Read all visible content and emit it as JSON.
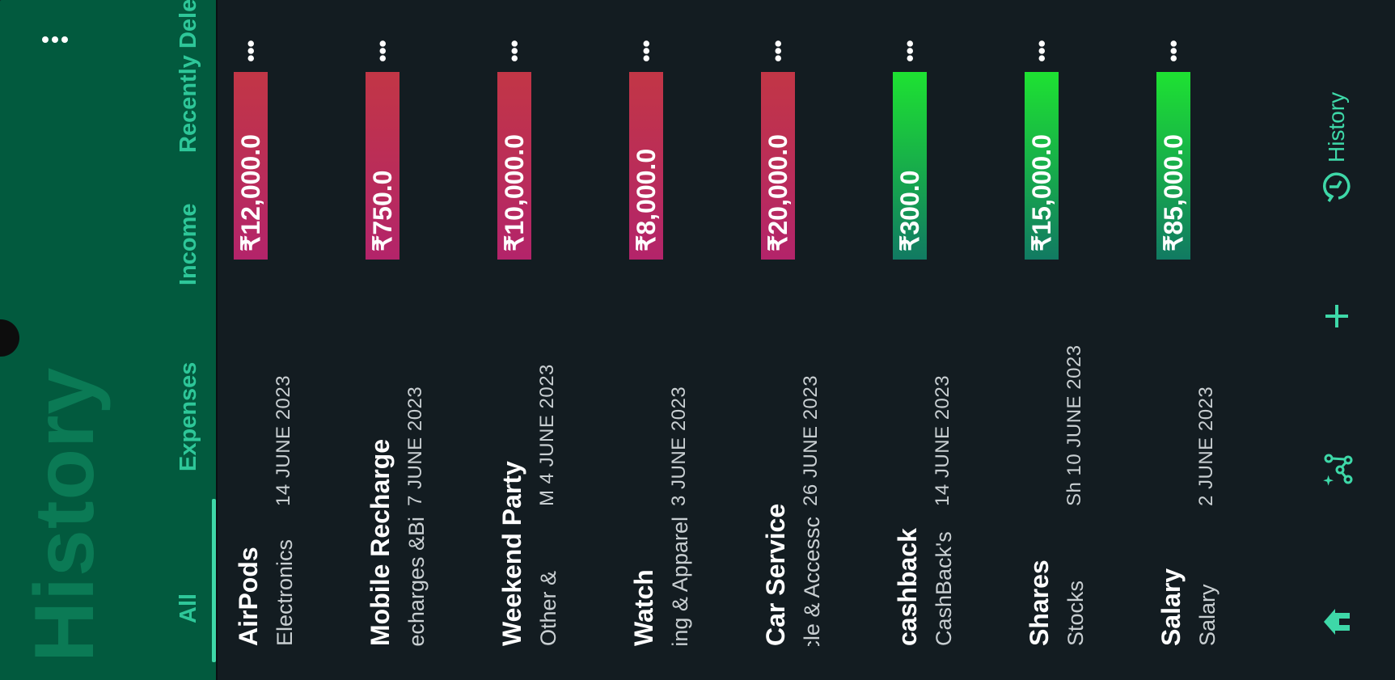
{
  "header": {
    "title": "History",
    "tabs": [
      "All",
      "Expenses",
      "Income",
      "Recently Dele"
    ],
    "menu_icon": "more-vert-icon"
  },
  "transactions": [
    {
      "title": "AirPods",
      "category": "Electronics",
      "date": "14  JUNE 2023",
      "amount": "₹12,000.0",
      "type": "expense"
    },
    {
      "title": "Mobile Recharge",
      "category": "Recharges &Bi",
      "date": "7  JUNE 2023",
      "amount": "₹750.0",
      "type": "expense"
    },
    {
      "title": "Weekend Party",
      "category": "& Other",
      "date": "M  4  JUNE 2023",
      "amount": "₹10,000.0",
      "type": "expense"
    },
    {
      "title": "Watch",
      "category": "ing & Apparel",
      "date": "3  JUNE 2023",
      "amount": "₹8,000.0",
      "type": "expense"
    },
    {
      "title": "Car Service",
      "category": "hicle & Accessc",
      "date": "26  JUNE 2023",
      "amount": "₹20,000.0",
      "type": "expense"
    },
    {
      "title": "cashback",
      "category": "CashBack's",
      "date": "14  JUNE 2023",
      "amount": "₹300.0",
      "type": "income"
    },
    {
      "title": "Shares",
      "category": "Stocks",
      "date": "Sh  10  JUNE 2023",
      "amount": "₹15,000.0",
      "type": "income"
    },
    {
      "title": "Salary",
      "category": "Salary",
      "date": "2  JUNE 2023",
      "amount": "₹85,000.0",
      "type": "income"
    }
  ],
  "nav": {
    "home_icon": "home-icon",
    "insights_icon": "sparkle-chart-icon",
    "add_icon": "plus-icon",
    "history_icon": "history-icon",
    "history_label": "History"
  },
  "colors": {
    "header_bg": "#025a3e",
    "accent": "#3ed8a8",
    "expense": "#b3246a",
    "income": "#1ee232",
    "background": "#131c21"
  }
}
